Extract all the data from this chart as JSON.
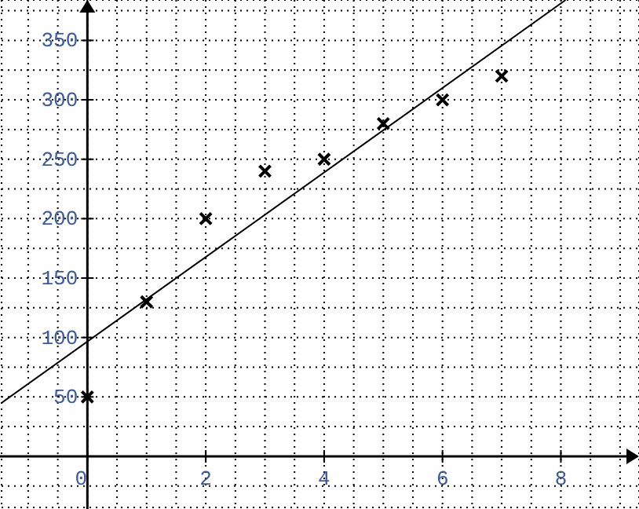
{
  "chart_data": {
    "type": "scatter",
    "x": [
      0,
      1,
      2,
      3,
      4,
      5,
      6,
      7
    ],
    "series": [
      {
        "color": "#000000",
        "values": [
          50,
          130,
          200,
          240,
          250,
          280,
          300,
          320
        ],
        "marker": "cross"
      },
      {
        "type": "line",
        "x": [
          -1.45,
          8.08
        ],
        "values": [
          45,
          384
        ],
        "color": "#000000",
        "marker": "none"
      }
    ],
    "grid": true,
    "xlim": [
      -1.45,
      9.32
    ],
    "ylim": [
      -43,
      384
    ],
    "xticks": [
      {
        "value": -1,
        "label": null
      },
      {
        "value": -0.5,
        "label": null
      },
      0,
      {
        "value": 0.5,
        "label": null
      },
      {
        "value": 1,
        "label": null
      },
      {
        "value": 1.5,
        "label": null
      },
      2,
      {
        "value": 2.5,
        "label": null
      },
      {
        "value": 3,
        "label": null
      },
      {
        "value": 3.5,
        "label": null
      },
      4,
      {
        "value": 4.5,
        "label": null
      },
      {
        "value": 5,
        "label": null
      },
      {
        "value": 5.5,
        "label": null
      },
      6,
      {
        "value": 6.5,
        "label": null
      },
      {
        "value": 7,
        "label": null
      },
      {
        "value": 7.5,
        "label": null
      },
      8,
      {
        "value": 8.5,
        "label": null
      },
      {
        "value": 9,
        "label": null
      }
    ],
    "yticks": [
      {
        "value": -25,
        "label": null
      },
      {
        "value": 0,
        "label": null
      },
      {
        "value": 25,
        "label": null
      },
      50,
      {
        "value": 75,
        "label": null
      },
      100,
      {
        "value": 125,
        "label": null
      },
      150,
      {
        "value": 175,
        "label": null
      },
      200,
      {
        "value": 225,
        "label": null
      },
      250,
      {
        "value": 275,
        "label": null
      },
      300,
      {
        "value": 325,
        "label": null
      },
      350,
      {
        "value": 375,
        "label": null
      }
    ]
  }
}
